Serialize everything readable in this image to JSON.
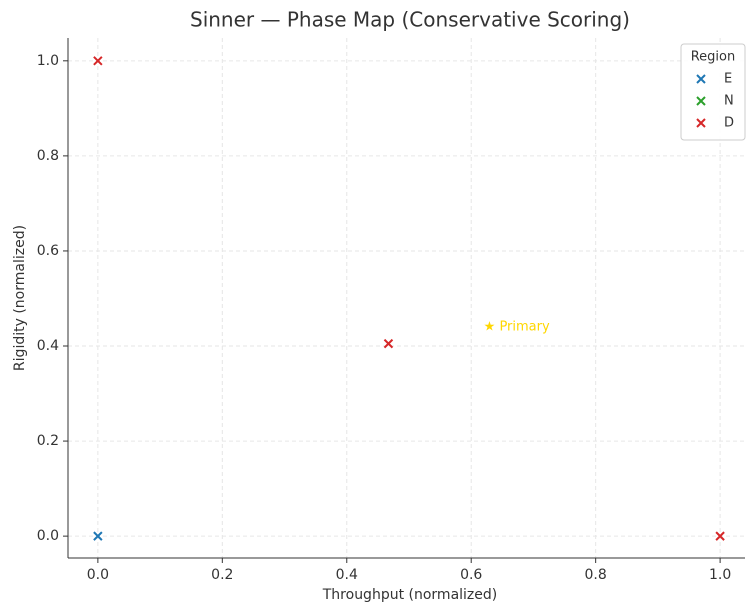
{
  "chart_data": {
    "type": "scatter",
    "title": "Sinner — Phase Map (Conservative Scoring)",
    "x_label": "Throughput (normalized)",
    "y_label": "Rigidity (normalized)",
    "series": [
      {
        "name": "E",
        "color": "#1f77b4",
        "x": [
          0
        ],
        "values": [
          0
        ]
      },
      {
        "name": "N",
        "color": "#2ca02c",
        "x": [],
        "values": []
      },
      {
        "name": "D",
        "color": "#d62728",
        "x": [
          0,
          0.467,
          1
        ],
        "values": [
          1,
          0.405,
          0
        ]
      }
    ],
    "annotations": [
      {
        "text": "★ Primary",
        "x": 0.62,
        "y": 0.44,
        "color": "#ffd700"
      }
    ],
    "xlim": [
      -0.048,
      1.04
    ],
    "ylim": [
      -0.046,
      1.048
    ],
    "xticks": [
      {
        "value": 0,
        "label": "0.0"
      },
      0.2,
      0.4,
      0.6,
      0.8,
      {
        "value": 1,
        "label": "1.0"
      }
    ],
    "yticks": [
      {
        "value": 0,
        "label": "0.0"
      },
      0.2,
      0.4,
      0.6,
      0.8,
      {
        "value": 1,
        "label": "1.0"
      }
    ],
    "grid": true,
    "legend": {
      "title": "Region",
      "corner": "upper right"
    }
  }
}
